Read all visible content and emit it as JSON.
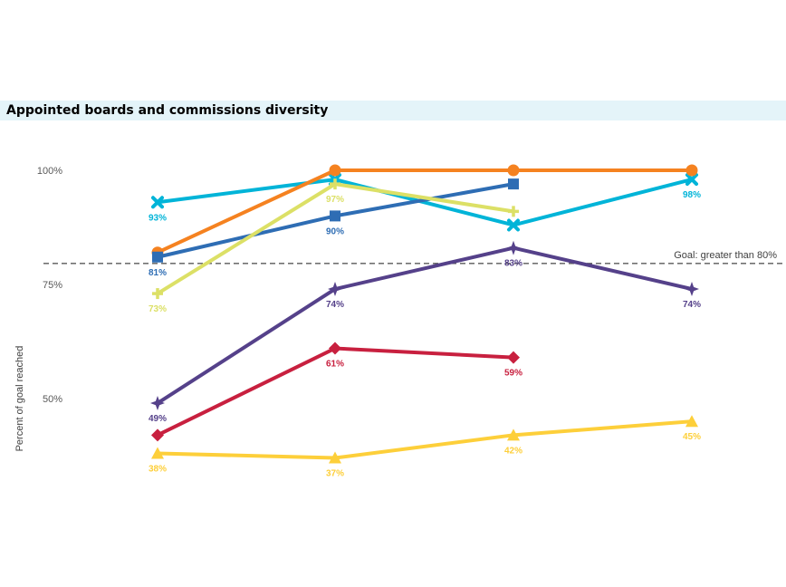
{
  "chart_data": {
    "type": "line",
    "title": "Appointed boards and commissions diversity",
    "ylabel": "Percent of goal reached",
    "xlabel": "",
    "ylim": [
      30,
      106
    ],
    "yticks": [
      {
        "value": 100,
        "label": "100%"
      },
      {
        "value": 75,
        "label": "75%"
      },
      {
        "value": 50,
        "label": "50%"
      }
    ],
    "x_count": 4,
    "goal": {
      "value": 80,
      "label": "Goal: greater than 80%",
      "color": "#595959"
    },
    "series": [
      {
        "color": "#00b4d8",
        "marker": "x",
        "values": [
          93,
          98,
          88,
          98
        ],
        "labels": [
          "93%",
          "",
          "",
          "98%"
        ],
        "label_pos": [
          "below",
          "below",
          "below",
          "below"
        ]
      },
      {
        "color": "#f58220",
        "marker": "circle",
        "values": [
          82,
          100,
          100,
          100
        ],
        "labels": [
          "",
          "",
          "",
          ""
        ],
        "label_pos": [
          "below",
          "below",
          "below",
          "below"
        ]
      },
      {
        "color": "#2e6db4",
        "marker": "square",
        "values": [
          81,
          90,
          97,
          null
        ],
        "labels": [
          "81%",
          "90%",
          "",
          ""
        ],
        "label_pos": [
          "below",
          "below",
          "below",
          "below"
        ]
      },
      {
        "color": "#dce066",
        "marker": "plus",
        "values": [
          73,
          97,
          91,
          null
        ],
        "labels": [
          "73%",
          "97%",
          "",
          ""
        ],
        "label_pos": [
          "below",
          "below",
          "below",
          "below"
        ]
      },
      {
        "color": "#55418a",
        "marker": "star",
        "values": [
          49,
          74,
          83,
          74
        ],
        "labels": [
          "49%",
          "74%",
          "83%",
          "74%"
        ],
        "label_pos": [
          "below",
          "below",
          "below",
          "below"
        ]
      },
      {
        "color": "#c8203f",
        "marker": "diamond",
        "values": [
          42,
          61,
          59,
          null
        ],
        "labels": [
          "",
          "61%",
          "59%",
          ""
        ],
        "label_pos": [
          "below",
          "below",
          "below",
          "below"
        ]
      },
      {
        "color": "#fdcf3a",
        "marker": "triangle",
        "values": [
          38,
          37,
          42,
          45
        ],
        "labels": [
          "38%",
          "37%",
          "42%",
          "45%"
        ],
        "label_pos": [
          "below",
          "below",
          "below",
          "below"
        ]
      }
    ]
  }
}
